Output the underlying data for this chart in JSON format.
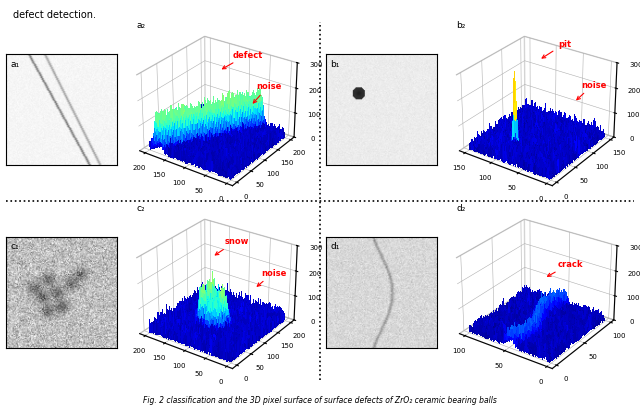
{
  "title": "Fig. 2 classification and the 3D pixel surface of surface defects of ZrO2 ceramic bearing balls",
  "labels": {
    "a1": "a₁",
    "a2": "a₂",
    "b1": "b₁",
    "b2": "b₂",
    "c1": "c₁",
    "c2": "c₂",
    "d1": "d₁",
    "d2": "d₂"
  },
  "background": "#ffffff",
  "top_text": "defect detection.",
  "caption": "Fig. 2 classification and the 3D pixel surface of surface defects of ZrO₂ ceramic bearing balls"
}
